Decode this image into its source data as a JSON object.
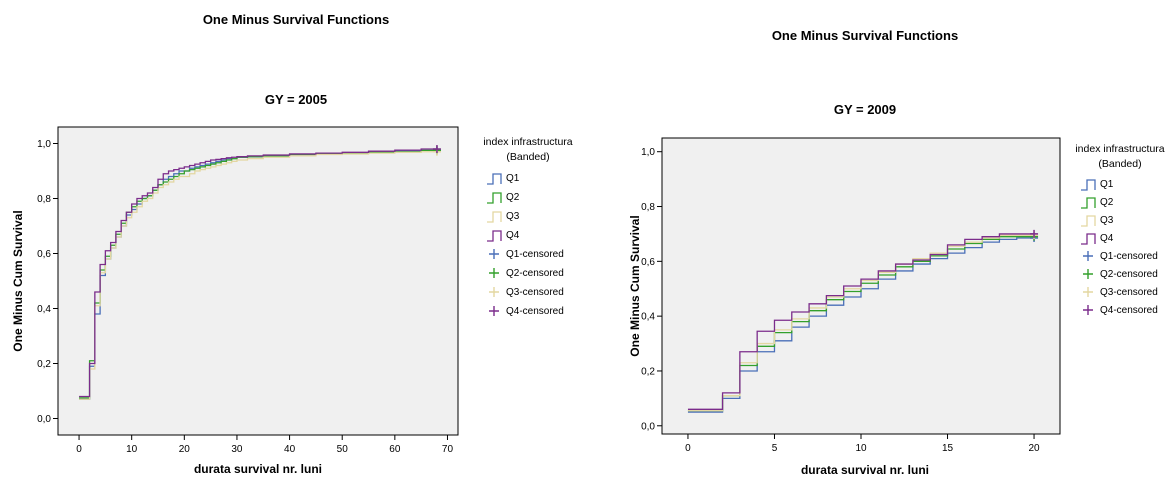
{
  "chart_data": [
    {
      "type": "line",
      "title": "One Minus Survival Functions",
      "subtitle": "GY = 2005",
      "xlabel": "durata survival nr. luni",
      "ylabel": "One Minus Cum Survival",
      "xlim": [
        -4,
        72
      ],
      "ylim": [
        -0.06,
        1.06
      ],
      "x_ticks": [
        0,
        10,
        20,
        30,
        40,
        50,
        60,
        70
      ],
      "x_tick_labels": [
        "0",
        "10",
        "20",
        "30",
        "40",
        "50",
        "60",
        "70"
      ],
      "y_ticks": [
        0,
        0.2,
        0.4,
        0.6,
        0.8,
        1.0
      ],
      "y_tick_labels": [
        "0,0",
        "0,2",
        "0,4",
        "0,6",
        "0,8",
        "1,0"
      ],
      "legend_title": [
        "index infrastructura",
        "(Banded)"
      ],
      "legend_placement": "right",
      "grid": false,
      "series": [
        {
          "name": "Q1",
          "color": "#4a6fb8",
          "x": [
            1,
            2,
            3,
            4,
            5,
            6,
            7,
            8,
            9,
            10,
            11,
            12,
            13,
            14,
            15,
            16,
            17,
            18,
            19,
            20,
            21,
            22,
            23,
            24,
            25,
            26,
            27,
            28,
            29,
            30,
            32,
            35,
            40,
            45,
            50,
            55,
            60,
            65,
            68
          ],
          "values": [
            0.07,
            0.19,
            0.38,
            0.52,
            0.58,
            0.62,
            0.66,
            0.7,
            0.74,
            0.76,
            0.78,
            0.8,
            0.81,
            0.83,
            0.85,
            0.87,
            0.88,
            0.89,
            0.9,
            0.9,
            0.91,
            0.915,
            0.92,
            0.925,
            0.93,
            0.935,
            0.94,
            0.945,
            0.945,
            0.95,
            0.952,
            0.955,
            0.96,
            0.962,
            0.965,
            0.968,
            0.972,
            0.975,
            0.975
          ]
        },
        {
          "name": "Q2",
          "color": "#33a02c",
          "x": [
            1,
            2,
            3,
            4,
            5,
            6,
            7,
            8,
            9,
            10,
            11,
            12,
            13,
            14,
            15,
            16,
            17,
            18,
            19,
            20,
            21,
            22,
            23,
            24,
            25,
            26,
            27,
            28,
            29,
            30,
            32,
            35,
            40,
            45,
            50,
            55,
            60,
            65,
            68
          ],
          "values": [
            0.075,
            0.21,
            0.42,
            0.54,
            0.59,
            0.63,
            0.67,
            0.71,
            0.75,
            0.77,
            0.79,
            0.8,
            0.81,
            0.83,
            0.85,
            0.86,
            0.87,
            0.88,
            0.89,
            0.9,
            0.905,
            0.91,
            0.915,
            0.92,
            0.925,
            0.93,
            0.935,
            0.94,
            0.945,
            0.95,
            0.952,
            0.955,
            0.96,
            0.962,
            0.965,
            0.968,
            0.97,
            0.975,
            0.975
          ]
        },
        {
          "name": "Q3",
          "color": "#e3d7a1",
          "x": [
            1,
            2,
            3,
            4,
            5,
            6,
            7,
            8,
            9,
            10,
            11,
            12,
            13,
            14,
            15,
            16,
            17,
            18,
            19,
            20,
            21,
            22,
            23,
            24,
            25,
            26,
            27,
            28,
            29,
            30,
            32,
            35,
            40,
            45,
            50,
            55,
            60,
            65,
            68
          ],
          "values": [
            0.07,
            0.18,
            0.41,
            0.53,
            0.58,
            0.62,
            0.66,
            0.7,
            0.73,
            0.75,
            0.77,
            0.79,
            0.8,
            0.82,
            0.84,
            0.85,
            0.86,
            0.87,
            0.88,
            0.88,
            0.89,
            0.9,
            0.905,
            0.91,
            0.915,
            0.92,
            0.925,
            0.93,
            0.935,
            0.94,
            0.945,
            0.95,
            0.955,
            0.96,
            0.962,
            0.965,
            0.968,
            0.97,
            0.97
          ]
        },
        {
          "name": "Q4",
          "color": "#7b2c8b",
          "x": [
            1,
            2,
            3,
            4,
            5,
            6,
            7,
            8,
            9,
            10,
            11,
            12,
            13,
            14,
            15,
            16,
            17,
            18,
            19,
            20,
            21,
            22,
            23,
            24,
            25,
            26,
            27,
            28,
            29,
            30,
            32,
            35,
            40,
            45,
            50,
            55,
            60,
            65,
            68
          ],
          "values": [
            0.08,
            0.2,
            0.46,
            0.56,
            0.61,
            0.64,
            0.68,
            0.72,
            0.75,
            0.78,
            0.8,
            0.81,
            0.82,
            0.84,
            0.87,
            0.89,
            0.9,
            0.905,
            0.91,
            0.915,
            0.92,
            0.925,
            0.93,
            0.935,
            0.94,
            0.942,
            0.945,
            0.948,
            0.95,
            0.952,
            0.955,
            0.958,
            0.962,
            0.965,
            0.968,
            0.972,
            0.976,
            0.98,
            0.98
          ]
        }
      ],
      "censored_legend": [
        "Q1-censored",
        "Q2-censored",
        "Q3-censored",
        "Q4-censored"
      ]
    },
    {
      "type": "line",
      "title": "One Minus Survival Functions",
      "subtitle": "GY = 2009",
      "xlabel": "durata survival nr. luni",
      "ylabel": "One Minus Cum Survival",
      "xlim": [
        -1.5,
        21.5
      ],
      "ylim": [
        -0.03,
        1.05
      ],
      "x_ticks": [
        0,
        5,
        10,
        15,
        20
      ],
      "x_tick_labels": [
        "0",
        "5",
        "10",
        "15",
        "20"
      ],
      "y_ticks": [
        0,
        0.2,
        0.4,
        0.6,
        0.8,
        1.0
      ],
      "y_tick_labels": [
        "0,0",
        "0,2",
        "0,4",
        "0,6",
        "0,8",
        "1,0"
      ],
      "legend_title": [
        "index infrastructura",
        "(Banded)"
      ],
      "legend_placement": "right",
      "grid": false,
      "series": [
        {
          "name": "Q1",
          "color": "#4a6fb8",
          "x": [
            1,
            2,
            3,
            4,
            5,
            6,
            7,
            8,
            9,
            10,
            11,
            12,
            13,
            14,
            15,
            16,
            17,
            18,
            19,
            20
          ],
          "values": [
            0.05,
            0.1,
            0.2,
            0.27,
            0.31,
            0.36,
            0.4,
            0.44,
            0.47,
            0.5,
            0.535,
            0.565,
            0.59,
            0.61,
            0.63,
            0.65,
            0.67,
            0.68,
            0.685,
            0.685
          ]
        },
        {
          "name": "Q2",
          "color": "#33a02c",
          "x": [
            1,
            2,
            3,
            4,
            5,
            6,
            7,
            8,
            9,
            10,
            11,
            12,
            13,
            14,
            15,
            16,
            17,
            18,
            19,
            20
          ],
          "values": [
            0.055,
            0.11,
            0.22,
            0.29,
            0.34,
            0.38,
            0.42,
            0.46,
            0.49,
            0.52,
            0.55,
            0.58,
            0.6,
            0.62,
            0.645,
            0.665,
            0.68,
            0.69,
            0.69,
            0.69
          ]
        },
        {
          "name": "Q3",
          "color": "#e3d7a1",
          "x": [
            1,
            2,
            3,
            4,
            5,
            6,
            7,
            8,
            9,
            10,
            11,
            12,
            13,
            14,
            15,
            16,
            17,
            18,
            19,
            20
          ],
          "values": [
            0.055,
            0.11,
            0.23,
            0.3,
            0.35,
            0.39,
            0.43,
            0.47,
            0.5,
            0.53,
            0.56,
            0.59,
            0.61,
            0.63,
            0.655,
            0.67,
            0.685,
            0.695,
            0.695,
            0.695
          ]
        },
        {
          "name": "Q4",
          "color": "#7b2c8b",
          "x": [
            1,
            2,
            3,
            4,
            5,
            6,
            7,
            8,
            9,
            10,
            11,
            12,
            13,
            14,
            15,
            16,
            17,
            18,
            19,
            20
          ],
          "values": [
            0.06,
            0.12,
            0.27,
            0.345,
            0.385,
            0.415,
            0.445,
            0.475,
            0.51,
            0.535,
            0.565,
            0.59,
            0.605,
            0.625,
            0.66,
            0.68,
            0.69,
            0.7,
            0.7,
            0.7
          ]
        }
      ],
      "censored_legend": [
        "Q1-censored",
        "Q2-censored",
        "Q3-censored",
        "Q4-censored"
      ]
    }
  ]
}
